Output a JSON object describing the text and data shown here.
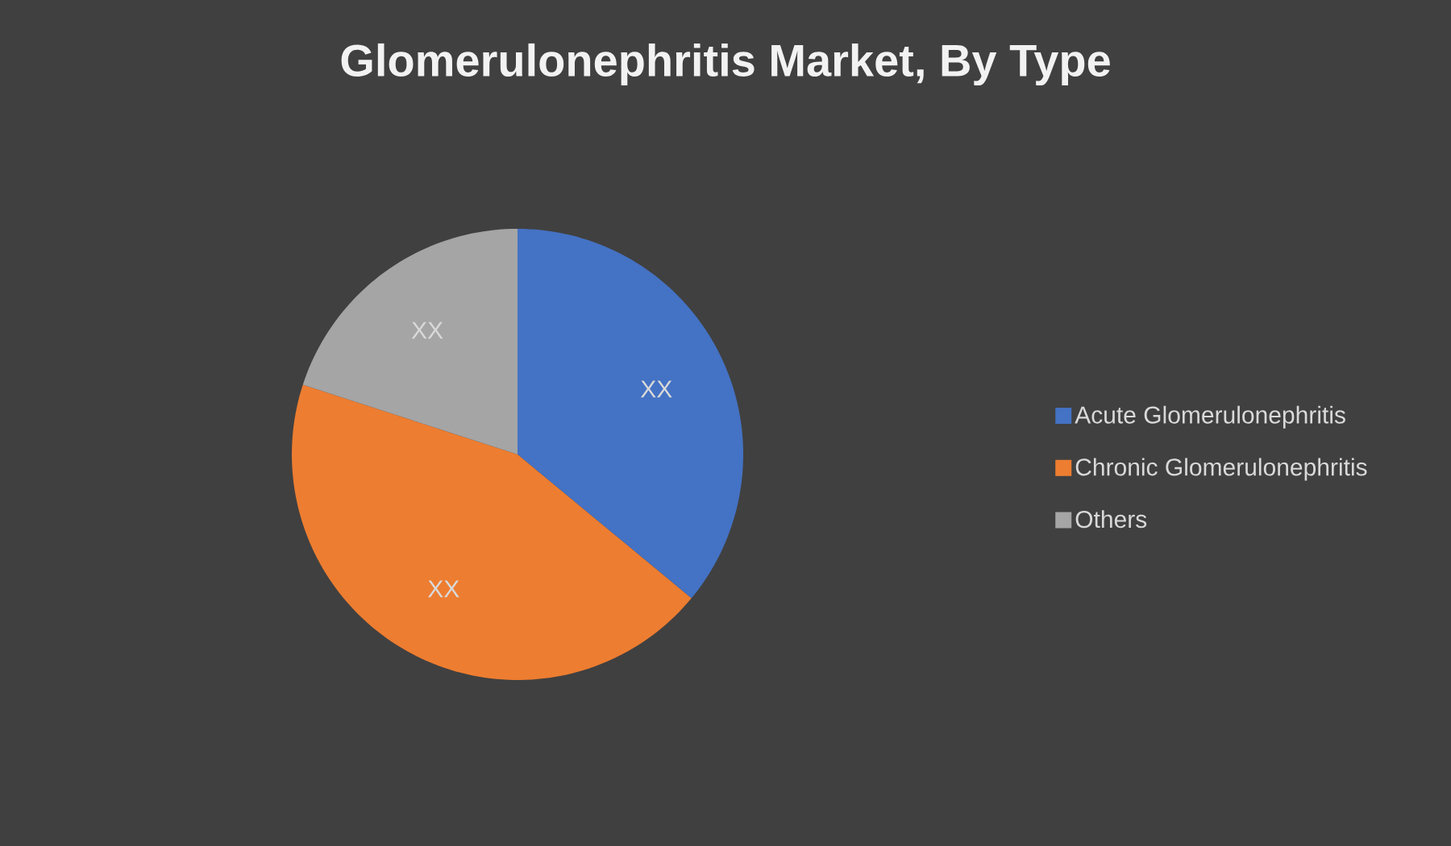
{
  "chart_data": {
    "type": "pie",
    "title": "Glomerulonephritis Market, By Type",
    "categories": [
      "Acute Glomerulonephritis",
      "Chronic Glomerulonephritis",
      "Others"
    ],
    "values": [
      36,
      44,
      20
    ],
    "colors": [
      "#4472c4",
      "#ed7d31",
      "#a5a5a5"
    ],
    "value_labels": [
      "XX",
      "XX",
      "XX"
    ],
    "legend": "right"
  }
}
